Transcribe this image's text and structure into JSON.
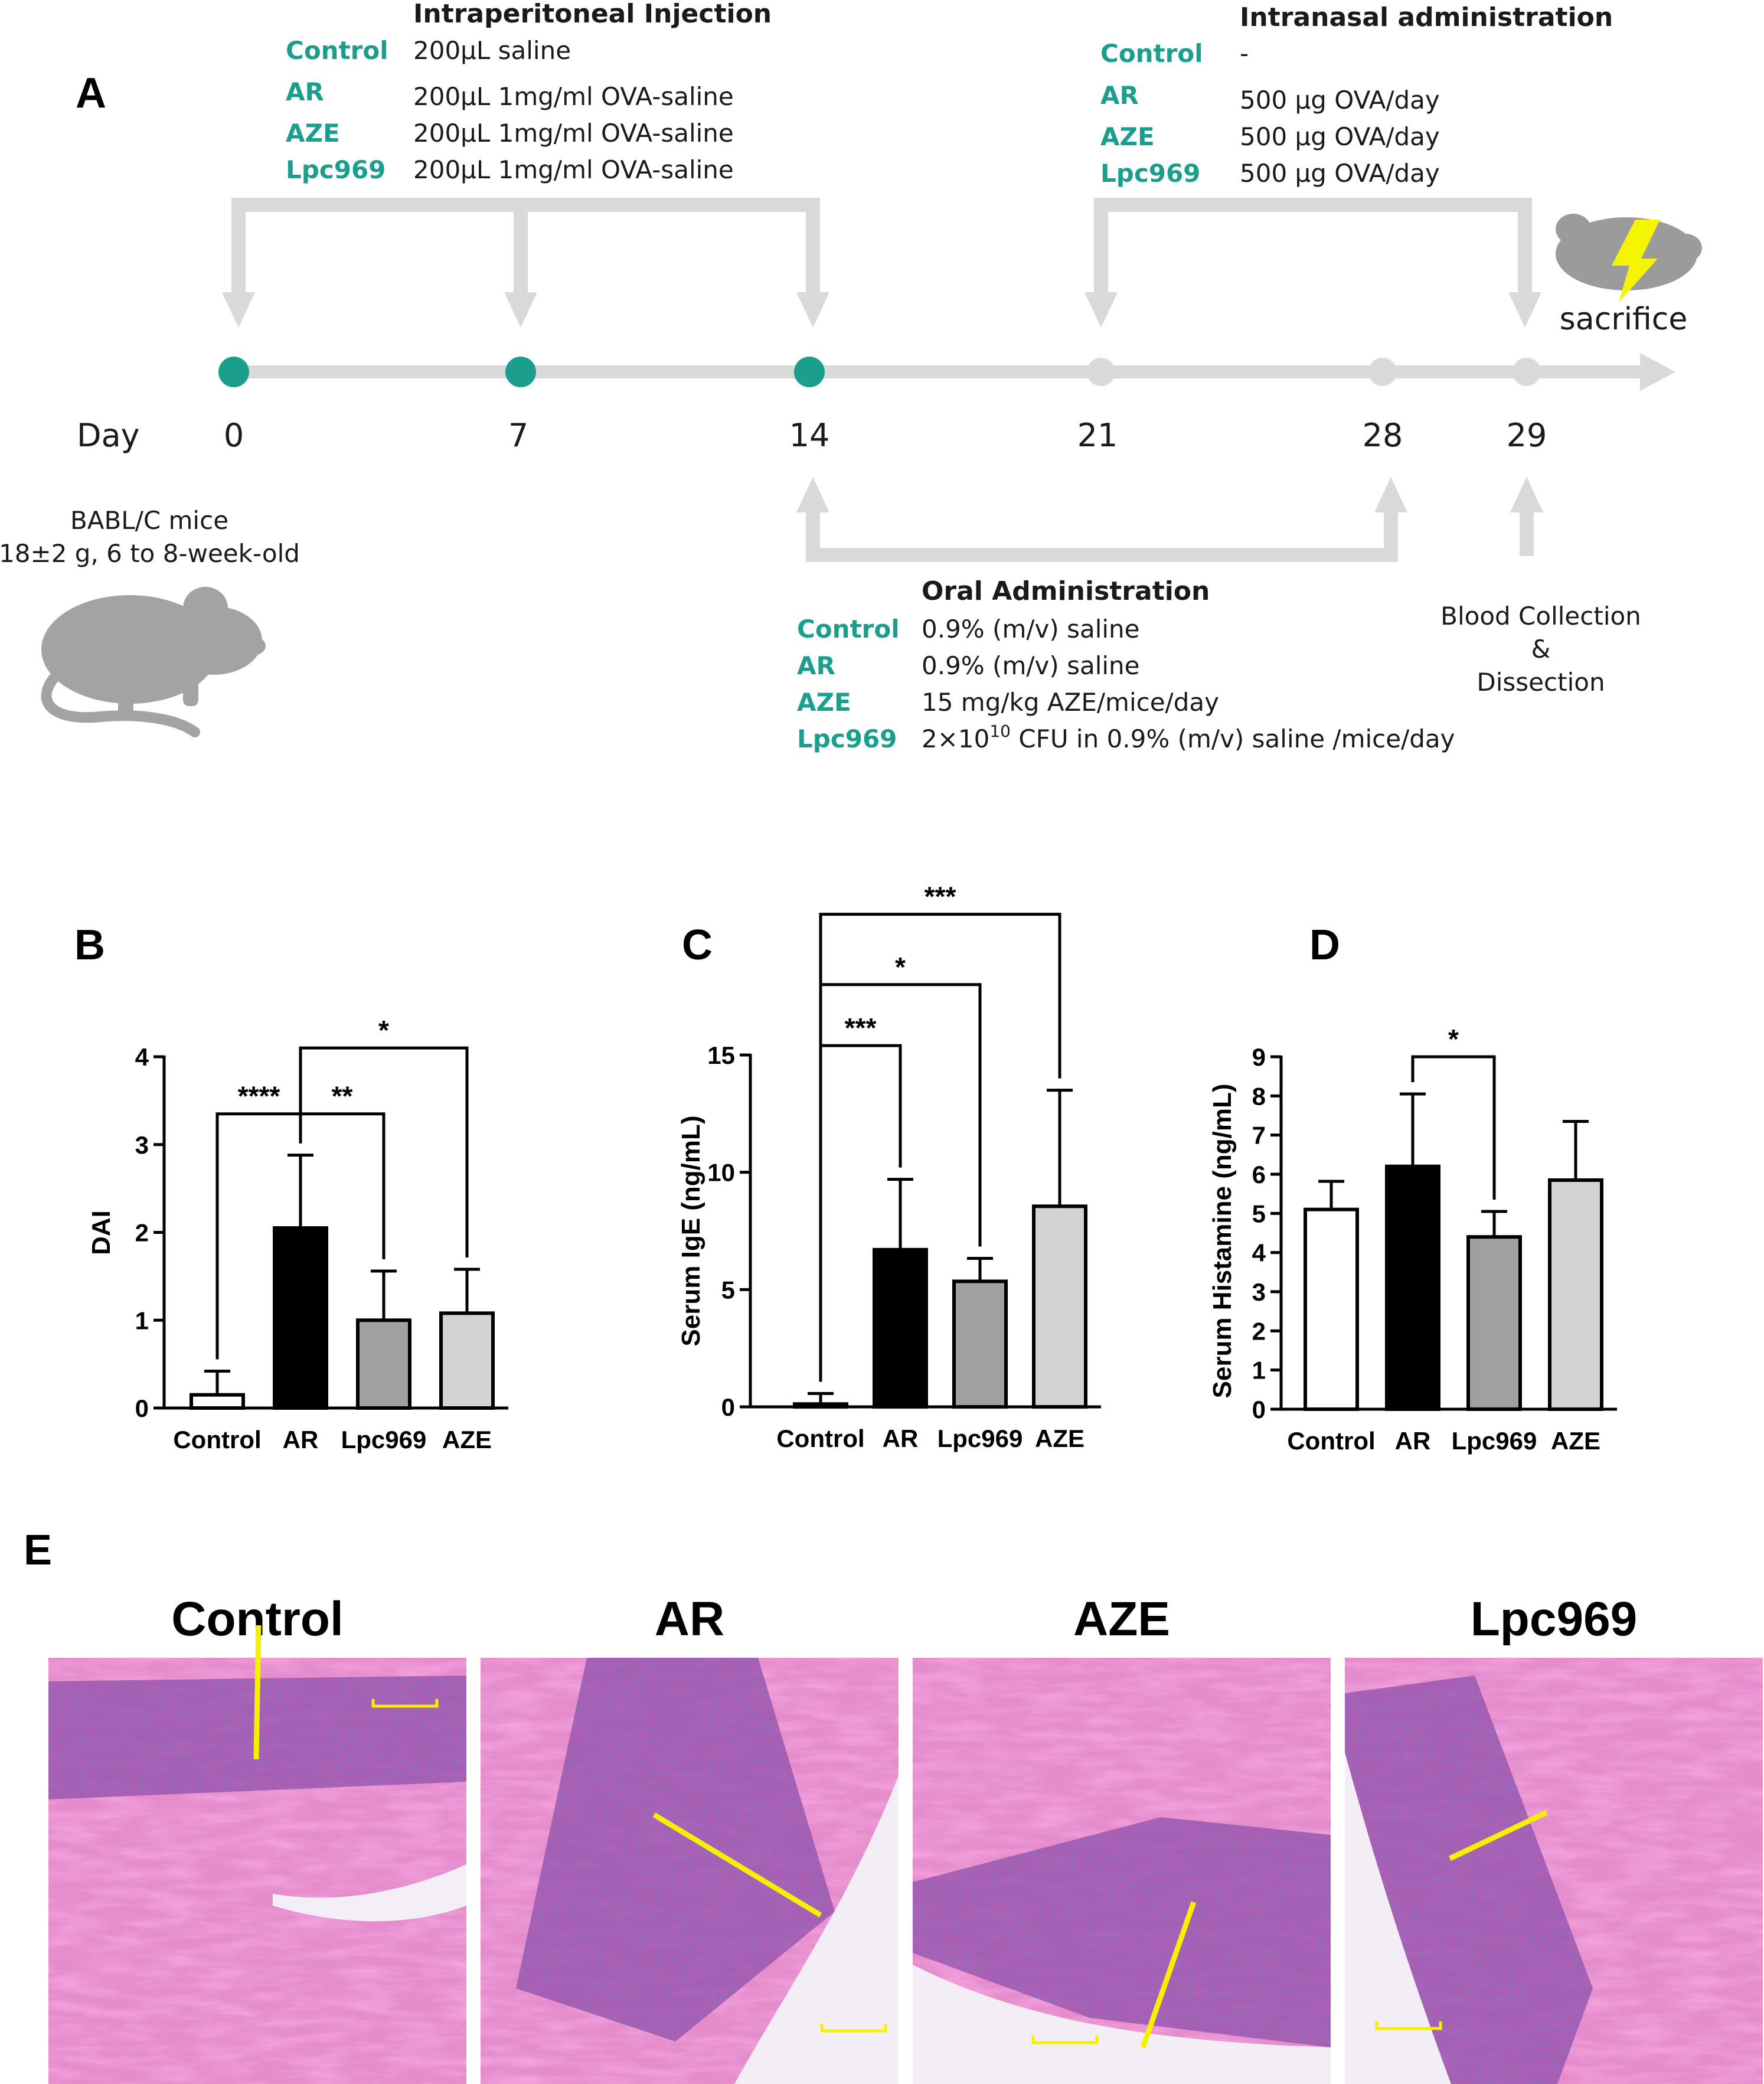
{
  "panels": {
    "A": "A",
    "B": "B",
    "C": "C",
    "D": "D",
    "E": "E"
  },
  "timeline": {
    "day_label": "Day",
    "days": [
      {
        "label": "0",
        "active": true
      },
      {
        "label": "7",
        "active": true
      },
      {
        "label": "14",
        "active": true
      },
      {
        "label": "21",
        "active": false
      },
      {
        "label": "28",
        "active": false
      },
      {
        "label": "29",
        "active": false
      }
    ],
    "sacrifice": "sacrifice",
    "mice": {
      "line1": "BABL/C mice",
      "line2": "18±2 g, 6 to 8-week-old"
    },
    "blood": {
      "line1": "Blood Collection",
      "line2": "&",
      "line3": "Dissection"
    },
    "colors": {
      "teal": "#1b9e8e",
      "grey": "#d9d9d9",
      "bolt": "#ffff00"
    }
  },
  "ip": {
    "title": "Intraperitoneal Injection",
    "rows": [
      {
        "group": "Control",
        "text": "200μL saline"
      },
      {
        "group": "AR",
        "text": "200μL 1mg/ml OVA-saline"
      },
      {
        "group": "AZE",
        "text": "200μL 1mg/ml OVA-saline"
      },
      {
        "group": "Lpc969",
        "text": "200μL 1mg/ml OVA-saline"
      }
    ]
  },
  "intranasal": {
    "title": "Intranasal administration",
    "rows": [
      {
        "group": "Control",
        "text": "-"
      },
      {
        "group": "AR",
        "text": "500 μg OVA/day"
      },
      {
        "group": "AZE",
        "text": "500 μg OVA/day"
      },
      {
        "group": "Lpc969",
        "text": "500 μg OVA/day"
      }
    ]
  },
  "oral": {
    "title": "Oral Administration",
    "rows": [
      {
        "group": "Control",
        "text": "0.9% (m/v) saline"
      },
      {
        "group": "AR",
        "text": "0.9% (m/v) saline"
      },
      {
        "group": "AZE",
        "text": "15 mg/kg AZE/mice/day"
      },
      {
        "group": "Lpc969",
        "text_pre": "2×10",
        "text_sup": "10",
        "text_post": " CFU in 0.9% (m/v) saline /mice/day"
      }
    ]
  },
  "chart_data": [
    {
      "type": "bar",
      "panel": "B",
      "ylabel": "DAI",
      "categories": [
        "Control",
        "AR",
        "Lpc969",
        "AZE"
      ],
      "values": [
        0.15,
        2.05,
        1.0,
        1.08
      ],
      "errors": [
        0.27,
        0.83,
        0.56,
        0.5
      ],
      "ylim": [
        0,
        4
      ],
      "yticks": [
        "0",
        "1",
        "2",
        "3",
        "4"
      ],
      "fills": [
        "#ffffff",
        "#000000",
        "#a0a0a0",
        "#d3d3d3"
      ],
      "significance": [
        {
          "label": "****",
          "a": 0,
          "b": 1,
          "level": 3.35
        },
        {
          "label": "**",
          "a": 1,
          "b": 2,
          "level": 3.35
        },
        {
          "label": "*",
          "a": 1,
          "b": 3,
          "level": 4.1
        }
      ]
    },
    {
      "type": "bar",
      "panel": "C",
      "ylabel": "Serum IgE (ng/mL)",
      "categories": [
        "Control",
        "AR",
        "Lpc969",
        "AZE"
      ],
      "values": [
        0.12,
        6.7,
        5.35,
        8.55
      ],
      "errors": [
        0.45,
        3.0,
        0.98,
        4.95
      ],
      "ylim": [
        0,
        15
      ],
      "yticks": [
        "0",
        "5",
        "10",
        "15"
      ],
      "fills": [
        "#ffffff",
        "#000000",
        "#a0a0a0",
        "#d3d3d3"
      ],
      "significance": [
        {
          "label": "***",
          "a": 0,
          "b": 1,
          "level": 15.4
        },
        {
          "label": "*",
          "a": 0,
          "b": 2,
          "level": 18.0
        },
        {
          "label": "***",
          "a": 0,
          "b": 3,
          "level": 21.0
        }
      ]
    },
    {
      "type": "bar",
      "panel": "D",
      "ylabel": "Serum Histamine (ng/mL)",
      "categories": [
        "Control",
        "AR",
        "Lpc969",
        "AZE"
      ],
      "values": [
        5.1,
        6.2,
        4.4,
        5.85
      ],
      "errors": [
        0.72,
        1.85,
        0.65,
        1.5
      ],
      "ylim": [
        0,
        9
      ],
      "yticks": [
        "0",
        "1",
        "2",
        "3",
        "4",
        "5",
        "6",
        "7",
        "8",
        "9"
      ],
      "fills": [
        "#ffffff",
        "#000000",
        "#a0a0a0",
        "#d3d3d3"
      ],
      "significance": [
        {
          "label": "*",
          "a": 1,
          "b": 2,
          "level": 9.0
        }
      ]
    }
  ],
  "histology": [
    {
      "title": "Control"
    },
    {
      "title": "AR"
    },
    {
      "title": "AZE"
    },
    {
      "title": "Lpc969"
    }
  ]
}
